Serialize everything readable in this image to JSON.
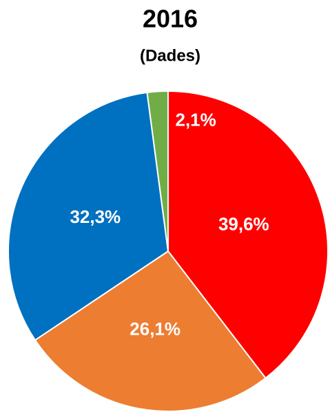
{
  "chart_data": {
    "type": "pie",
    "title": "2016",
    "subtitle": "(Dades)",
    "values": [
      39.6,
      26.1,
      32.3,
      2.1
    ],
    "value_labels": [
      "39,6%",
      "26,1%",
      "32,3%",
      "2,1%"
    ],
    "colors": [
      "#ff0000",
      "#ed7d31",
      "#0070c0",
      "#70ad47"
    ]
  }
}
